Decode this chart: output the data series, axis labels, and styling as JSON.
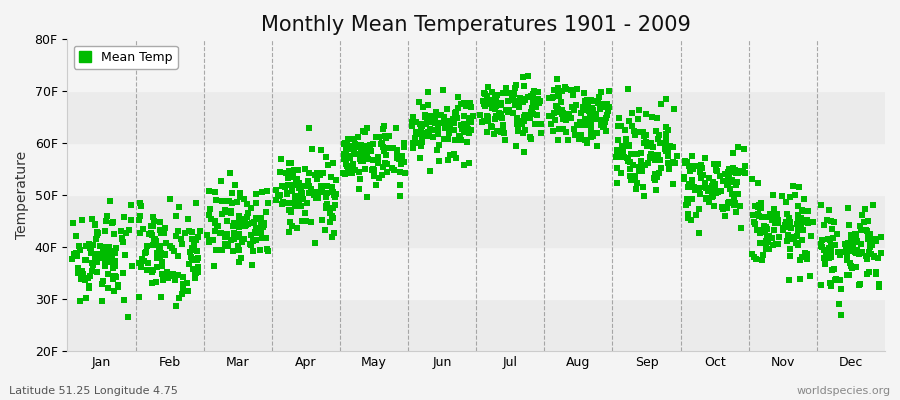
{
  "title": "Monthly Mean Temperatures 1901 - 2009",
  "ylabel": "Temperature",
  "legend_label": "Mean Temp",
  "footer_left": "Latitude 51.25 Longitude 4.75",
  "footer_right": "worldspecies.org",
  "ylim": [
    20,
    80
  ],
  "yticks": [
    20,
    30,
    40,
    50,
    60,
    70,
    80
  ],
  "ytick_labels": [
    "20F",
    "30F",
    "40F",
    "50F",
    "60F",
    "70F",
    "80F"
  ],
  "months": [
    "Jan",
    "Feb",
    "Mar",
    "Apr",
    "May",
    "Jun",
    "Jul",
    "Aug",
    "Sep",
    "Oct",
    "Nov",
    "Dec"
  ],
  "marker_color": "#00bb00",
  "marker": "s",
  "marker_size": 4,
  "bg_color": "#f4f4f4",
  "title_fontsize": 15,
  "axis_label_fontsize": 10,
  "tick_label_fontsize": 9,
  "legend_fontsize": 9,
  "month_means_F": [
    38.5,
    39.5,
    44.5,
    50.5,
    57.5,
    63.0,
    66.5,
    65.5,
    59.5,
    51.5,
    43.5,
    39.0
  ],
  "month_stds_F": [
    4.5,
    4.8,
    3.8,
    3.5,
    3.2,
    3.0,
    2.8,
    2.9,
    4.0,
    3.5,
    3.8,
    4.2
  ]
}
